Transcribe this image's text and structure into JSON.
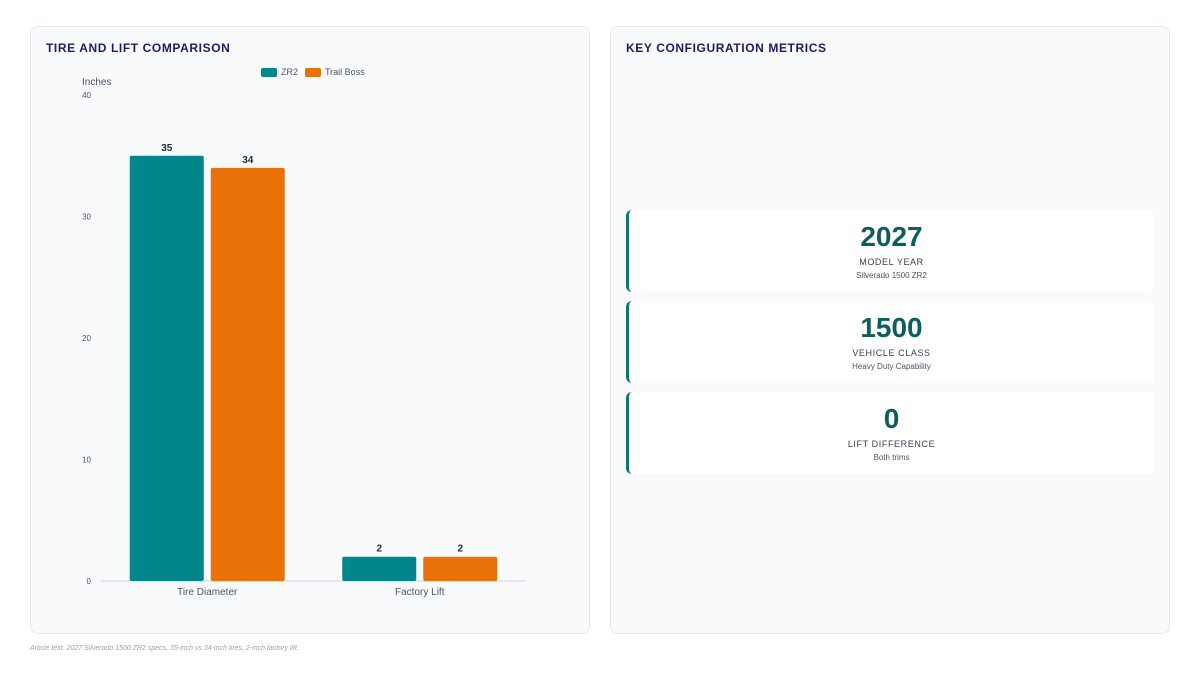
{
  "left_panel": {
    "title": "TIRE AND LIFT COMPARISON"
  },
  "right_panel": {
    "title": "KEY CONFIGURATION METRICS",
    "metrics": [
      {
        "value": "2027",
        "label": "MODEL YEAR",
        "sub": "Silverado 1500 ZR2"
      },
      {
        "value": "1500",
        "label": "VEHICLE CLASS",
        "sub": "Heavy Duty Capability"
      },
      {
        "value": "0",
        "label": "LIFT DIFFERENCE",
        "sub": "Both trims"
      }
    ]
  },
  "footnote": "Article text: 2027 Silverado 1500 ZR2 specs, 35-inch vs 34-inch tires, 2-inch factory lift.",
  "colors": {
    "zr2": "#00868b",
    "trail_boss": "#e8710a",
    "accent": "#0f766e"
  },
  "chart_data": {
    "type": "bar",
    "categories": [
      "Tire Diameter",
      "Factory Lift"
    ],
    "series": [
      {
        "name": "ZR2",
        "values": [
          35,
          2
        ],
        "color": "#00868b"
      },
      {
        "name": "Trail Boss",
        "values": [
          34,
          2
        ],
        "color": "#e8710a"
      }
    ],
    "ylabel": "Inches",
    "ylim": [
      0,
      40
    ],
    "yticks": [
      0,
      10,
      20,
      30,
      40
    ],
    "data_labels": true,
    "legend_position": "top",
    "grid": false
  }
}
